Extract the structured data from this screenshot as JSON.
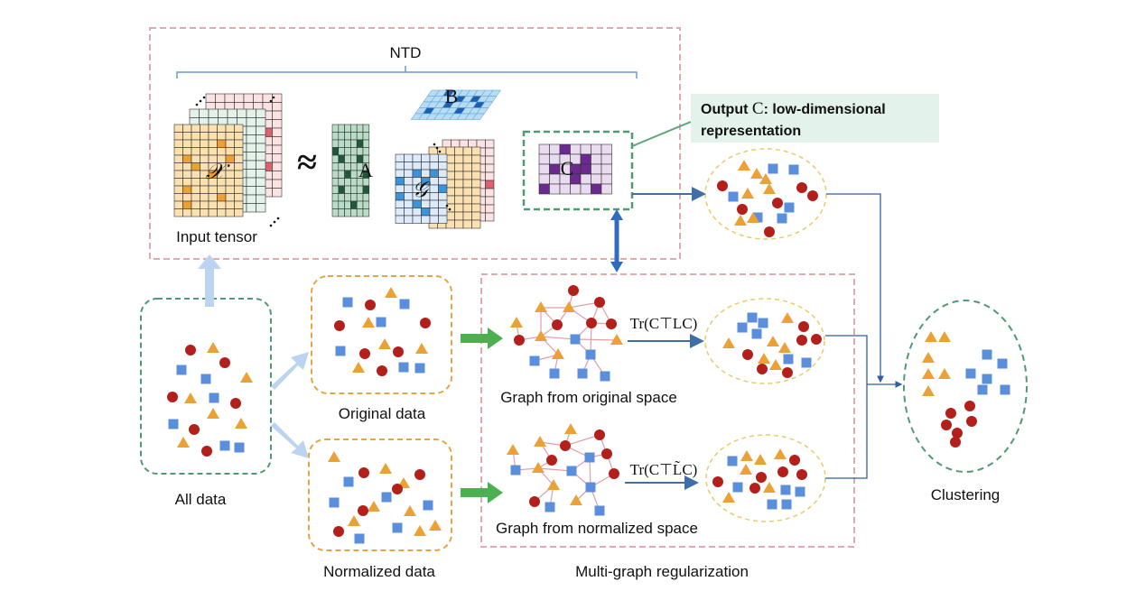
{
  "ntd": {
    "title": "NTD",
    "input_label": "Input tensor",
    "approx": "≈",
    "x_symbol": "𝒳",
    "a_symbol": "A",
    "b_symbol": "B",
    "g_symbol": "𝒢",
    "c_symbol": "C"
  },
  "output": {
    "prefix": "Output ",
    "symbol": "C",
    "text1": ": low-dimensional",
    "text2": "representation"
  },
  "all_data_label": "All data",
  "original_label": "Original data",
  "normalized_label": "Normalized data",
  "graph_original_label": "Graph from original space",
  "graph_normalized_label": "Graph from normalized space",
  "formula_original": "Tr(C⊤LC)",
  "formula_normalized": "Tr(C⊤L̃C)",
  "multigraph_label": "Multi-graph regularization",
  "clustering_label": "Clustering",
  "colors": {
    "circle": "#b3201c",
    "triangle": "#eaa236",
    "square": "#5b8fdc",
    "pink_box": "#e3a9ae",
    "green_box": "#4f9a72",
    "orange_box": "#e6a545",
    "yellow_ellipse": "#e8cb6a",
    "arrow_blue": "#3f6ea8",
    "arrow_green": "#4caf50",
    "light_arrow": "#bcd4ef",
    "output_bg": "#e3f2eb"
  }
}
